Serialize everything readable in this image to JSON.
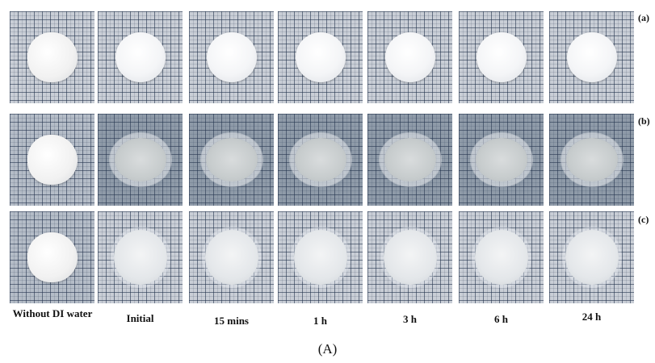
{
  "row_labels": [
    "(a)",
    "(b)",
    "(c)"
  ],
  "column_labels": [
    "Without DI water",
    "Initial",
    "15 mins",
    "1 h",
    "3 h",
    "6 h",
    "24 h"
  ],
  "caption": "(A)"
}
